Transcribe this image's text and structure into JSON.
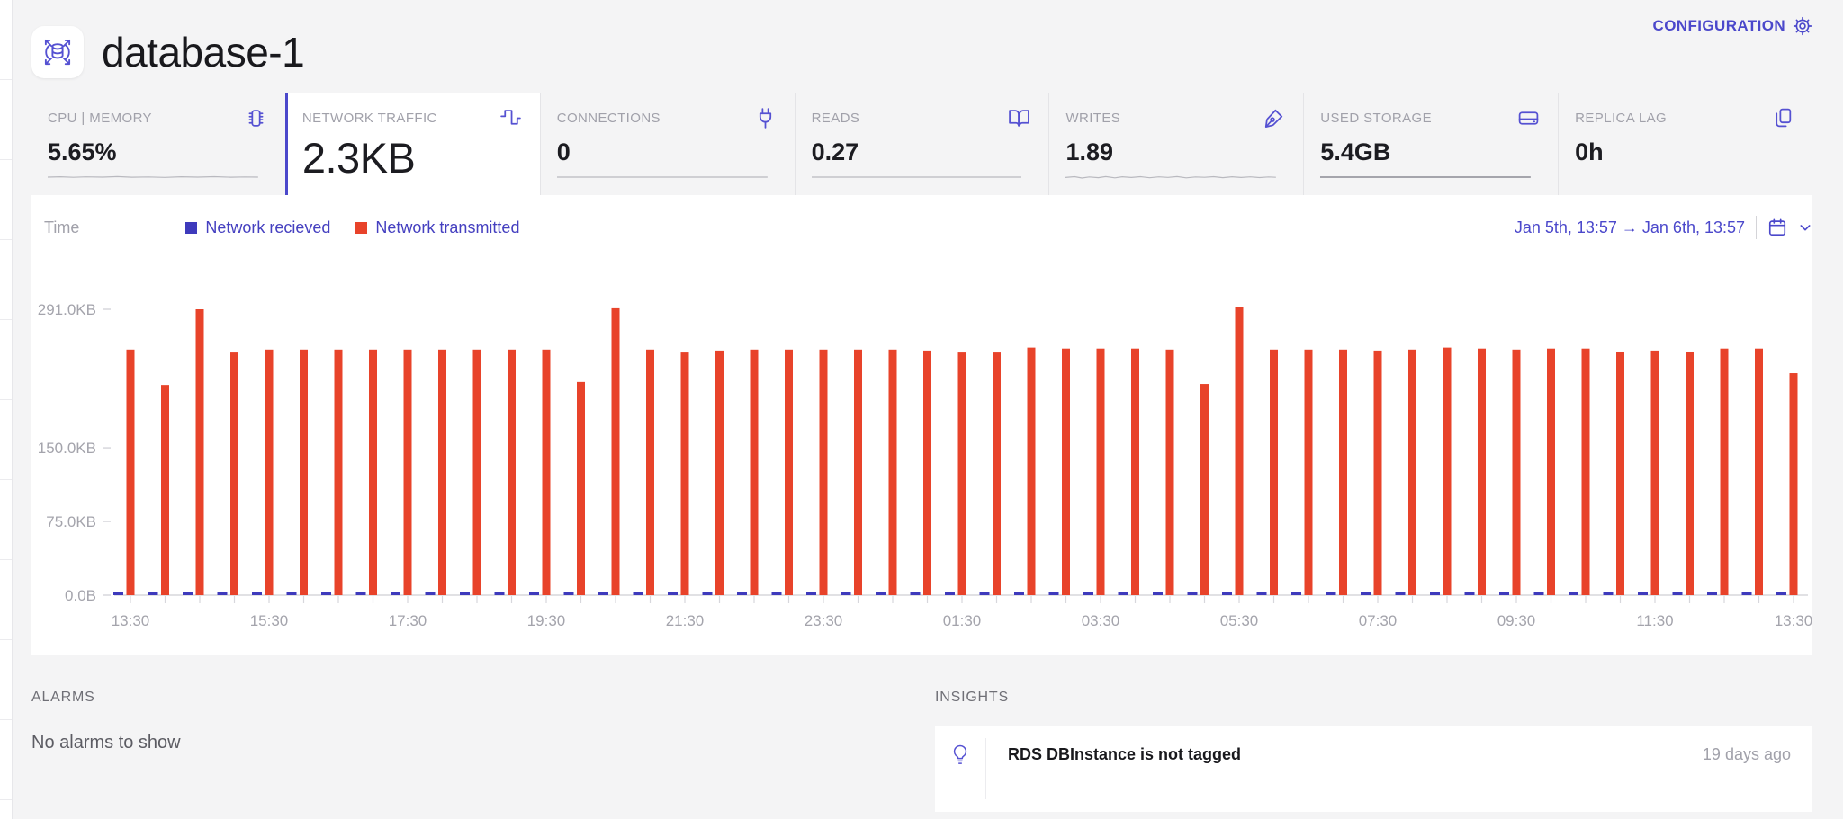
{
  "header": {
    "title": "database-1",
    "configuration_label": "CONFIGURATION"
  },
  "tabs": [
    {
      "label": "CPU | MEMORY",
      "value": "5.65%",
      "icon": "cpu-chip-icon",
      "selected": false
    },
    {
      "label": "NETWORK TRAFFIC",
      "value": "2.3KB",
      "icon": "pulse-icon",
      "selected": true
    },
    {
      "label": "CONNECTIONS",
      "value": "0",
      "icon": "plug-icon",
      "selected": false
    },
    {
      "label": "READS",
      "value": "0.27",
      "icon": "book-open-icon",
      "selected": false
    },
    {
      "label": "WRITES",
      "value": "1.89",
      "icon": "pen-nib-icon",
      "selected": false
    },
    {
      "label": "USED STORAGE",
      "value": "5.4GB",
      "icon": "hard-drive-icon",
      "selected": false
    },
    {
      "label": "REPLICA LAG",
      "value": "0h",
      "icon": "copy-icon",
      "selected": false
    }
  ],
  "chart": {
    "time_label": "Time",
    "legend": [
      {
        "label": "Network recieved",
        "color": "#3e3abc"
      },
      {
        "label": "Network transmitted",
        "color": "#e8432a"
      }
    ],
    "date_range_text": "Jan 5th, 13:57 → Jan 6th, 13:57"
  },
  "chart_data": {
    "type": "bar",
    "title": "Network traffic (KB) over time",
    "x": [
      "13:30",
      "14:00",
      "14:30",
      "15:00",
      "15:30",
      "16:00",
      "16:30",
      "17:00",
      "17:30",
      "18:00",
      "18:30",
      "19:00",
      "19:30",
      "20:00",
      "20:30",
      "21:00",
      "21:30",
      "22:00",
      "22:30",
      "23:00",
      "23:30",
      "00:00",
      "00:30",
      "01:00",
      "01:30",
      "02:00",
      "02:30",
      "03:00",
      "03:30",
      "04:00",
      "04:30",
      "05:00",
      "05:30",
      "06:00",
      "06:30",
      "07:00",
      "07:30",
      "08:00",
      "08:30",
      "09:00",
      "09:30",
      "10:00",
      "10:30",
      "11:00",
      "11:30",
      "12:00",
      "12:30",
      "13:00",
      "13:30"
    ],
    "series": [
      {
        "name": "Network recieved",
        "color": "#3e3abc",
        "values": [
          2,
          2,
          2,
          2,
          2,
          2,
          2,
          2,
          2,
          2,
          2,
          2,
          2,
          2,
          2,
          2,
          2,
          2,
          2,
          2,
          2,
          2,
          2,
          2,
          2,
          2,
          2,
          2,
          2,
          2,
          2,
          2,
          2,
          2,
          2,
          2,
          2,
          2,
          2,
          2,
          2,
          2,
          2,
          2,
          2,
          2,
          2,
          2,
          2
        ]
      },
      {
        "name": "Network transmitted",
        "color": "#e8432a",
        "values": [
          250,
          214,
          291,
          247,
          250,
          250,
          250,
          250,
          250,
          250,
          250,
          250,
          250,
          217,
          292,
          250,
          247,
          249,
          250,
          250,
          250,
          250,
          250,
          249,
          247,
          247,
          252,
          251,
          251,
          251,
          250,
          215,
          293,
          250,
          250,
          250,
          249,
          250,
          252,
          251,
          250,
          251,
          251,
          248,
          249,
          248,
          251,
          251,
          226
        ]
      }
    ],
    "y_ticks": [
      "0.0B",
      "75.0KB",
      "150.0KB",
      "291.0KB"
    ],
    "y_tick_values": [
      0,
      75,
      150,
      291
    ],
    "ylim": [
      0,
      320
    ],
    "xtick_every": 4,
    "x_tick_labels": [
      "13:30",
      "15:30",
      "17:30",
      "19:30",
      "21:30",
      "23:30",
      "01:30",
      "03:30",
      "05:30",
      "07:30",
      "09:30",
      "11:30",
      "13:30"
    ],
    "grid": false,
    "legend_position": "top"
  },
  "alarms": {
    "header": "ALARMS",
    "empty_message": "No alarms to show"
  },
  "insights": {
    "header": "INSIGHTS",
    "items": [
      {
        "title": "RDS DBInstance is not tagged",
        "time": "19 days ago"
      }
    ]
  }
}
